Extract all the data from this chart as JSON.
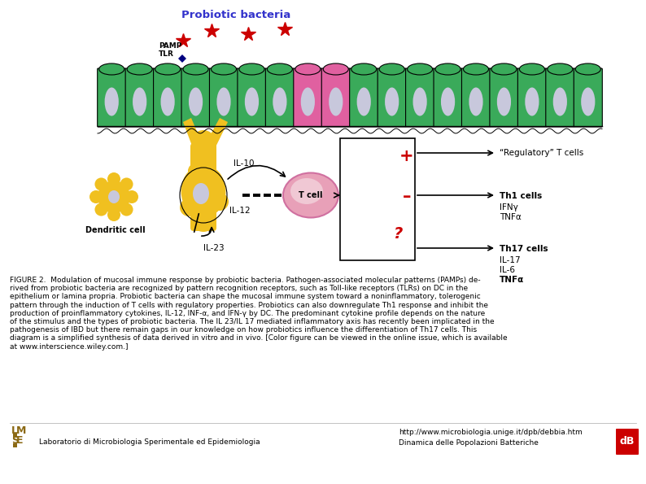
{
  "background_color": "#ffffff",
  "title_text": "Probiotic bacteria",
  "title_color": "#3333cc",
  "title_fontsize": 9.5,
  "title_bold": true,
  "caption_fontsize": 6.5,
  "footer_lab_text": "Laboratorio di Microbiologia Sperimentale ed Epidemiologia",
  "footer_url_text": "http://www.microbiologia.unige.it/dpb/debbia.htm",
  "footer_dyn_text": "Dinamica delle Popolazioni Batteriche",
  "footer_fontsize": 6.5,
  "db_logo_color": "#cc0000",
  "star_color": "#cc0000",
  "yellow_color": "#f0c020",
  "green_color": "#3aaa5a",
  "pink_color": "#e060a0",
  "tcell_color": "#e8a0b8",
  "tcell_border": "#d070a0",
  "nucleus_color": "#c8c8dc",
  "plus_color": "#cc0000",
  "minus_color": "#cc0000",
  "question_color": "#cc0000",
  "pamp_text": "PAMP",
  "tlr_text": "TLR",
  "dc_text": "Dendritic cell",
  "il10_text": "IL-10",
  "il12_text": "IL-12",
  "il23_text": "IL-23",
  "regulatory_text": "“Regulatory” T cells",
  "th1_label": "Th1 cells",
  "th1_sub": "IFNγ\nTNFα",
  "th17_label": "Th17 cells",
  "th17_sub": "IL-17\nIL-6\nTNFα",
  "caption_lines": [
    "FIGURE 2.  Modulation of mucosal immune response by probiotic bacteria. Pathogen-associated molecular patterns (PAMPs) de-",
    "rived from probiotic bacteria are recognized by pattern recognition receptors, such as Toll-like receptors (TLRs) on DC in the",
    "epithelium or lamina propria. Probiotic bacteria can shape the mucosal immune system toward a noninflammatory, tolerogenic",
    "pattern through the induction of T cells with regulatory properties. Probiotics can also downregulate Th1 response and inhibit the",
    "production of proinflammatory cytokines, IL-12, INF-α, and IFN-γ by DC. The predominant cytokine profile depends on the nature",
    "of the stimulus and the types of probiotic bacteria. The IL 23/IL 17 mediated inflammatory axis has recently been implicated in the",
    "pathogenesis of IBD but there remain gaps in our knowledge on how probiotics influence the differentiation of Th17 cells. This",
    "diagram is a simplified synthesis of data derived in vitro and in vivo. [Color figure can be viewed in the online issue, which is available",
    "at www.interscience.wiley.com.]"
  ]
}
